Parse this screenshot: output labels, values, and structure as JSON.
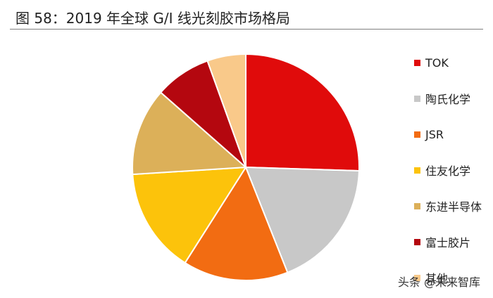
{
  "figure": {
    "title": "图  58：2019 年全球 G/I 线光刻胶市场格局"
  },
  "chart_data": {
    "type": "pie",
    "start_angle_deg": 0,
    "direction": "clockwise",
    "slices": [
      {
        "label": "TOK",
        "value": 25.5,
        "color": "#e00b0b"
      },
      {
        "label": "陶氏化学",
        "value": 18.5,
        "color": "#c8c8c8"
      },
      {
        "label": "JSR",
        "value": 15.0,
        "color": "#f26c12"
      },
      {
        "label": "住友化学",
        "value": 15.0,
        "color": "#fcc30b"
      },
      {
        "label": "东进半导体",
        "value": 12.5,
        "color": "#dcb059"
      },
      {
        "label": "富士胶片",
        "value": 8.0,
        "color": "#b4070f"
      },
      {
        "label": "其他",
        "value": 5.5,
        "color": "#f9c98a"
      }
    ],
    "legend_position": "right"
  },
  "watermark": {
    "text": "头条 @未来智库"
  }
}
